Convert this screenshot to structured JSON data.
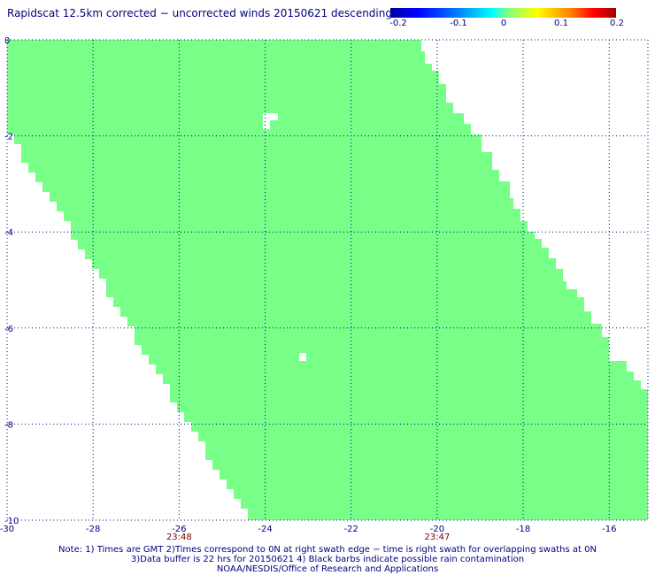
{
  "title": "Rapidscat 12.5km corrected − uncorrected winds 20150621 descending",
  "colorbar": {
    "labels": [
      "-0.2",
      "-0.1",
      "0",
      "0.1",
      "0.2"
    ],
    "min": -0.2,
    "max": 0.2
  },
  "axes": {
    "x_ticks": [
      "-30",
      "-28",
      "-26",
      "-24",
      "-22",
      "-20",
      "-18",
      "-16"
    ],
    "y_ticks": [
      "0",
      "-2",
      "-4",
      "-6",
      "-8",
      "-10"
    ],
    "lon_range": [
      -30,
      -15.1
    ],
    "lat_range": [
      -10,
      0
    ],
    "grid": "dotted"
  },
  "swath_times": [
    {
      "label": "23:48",
      "lon": -26
    },
    {
      "label": "23:47",
      "lon": -20
    }
  ],
  "swath": {
    "fill_color": "#77ff88",
    "value": 0
  },
  "notes": [
    "Note: 1) Times are GMT 2)Times correspond to 0N at right swath edge − time is right swath for overlapping swaths at 0N",
    "3)Data buffer is 22 hrs for 20150621 4) Black barbs indicate possible rain contamination",
    "NOAA/NESDIS/Office of Research and Applications"
  ]
}
